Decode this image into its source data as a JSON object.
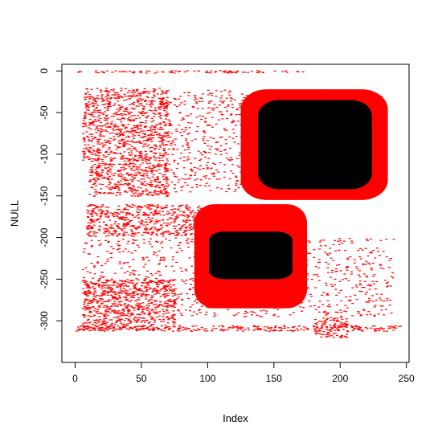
{
  "chart_data": {
    "type": "scatter",
    "title": "",
    "xlabel": "Index",
    "ylabel": "NULL",
    "xlim": [
      -10,
      252
    ],
    "ylim": [
      -350,
      8
    ],
    "grid": false,
    "x_ticks": [
      0,
      50,
      100,
      150,
      200,
      250
    ],
    "y_ticks": [
      0,
      -50,
      -100,
      -150,
      -200,
      -250,
      -300
    ],
    "x_tick_labels": [
      "0",
      "50",
      "100",
      "150",
      "200",
      "250"
    ],
    "y_tick_labels": [
      "0",
      "-50",
      "-100",
      "-150",
      "-200",
      "-250",
      "-300"
    ],
    "colors": {
      "fill": "#ff0000",
      "core": "#000000",
      "frame": "#000000"
    },
    "series": [
      {
        "color": "#ff0000",
        "regions": [
          {
            "x": [
              0,
              172
            ],
            "y": [
              -2,
              1
            ]
          },
          {
            "x": [
              5,
              70
            ],
            "y": [
              -108,
              -20
            ]
          },
          {
            "x": [
              10,
              70
            ],
            "y": [
              -150,
              -110
            ]
          },
          {
            "x": [
              70,
              230
            ],
            "y": [
              -145,
              -22
            ]
          },
          {
            "x": [
              8,
              95
            ],
            "y": [
              -198,
              -160
            ]
          },
          {
            "x": [
              5,
              240
            ],
            "y": [
              -295,
              -200
            ]
          },
          {
            "x": [
              5,
              75
            ],
            "y": [
              -310,
              -250
            ]
          },
          {
            "x": [
              180,
              205
            ],
            "y": [
              -320,
              -295
            ]
          },
          {
            "x": [
              0,
              245
            ],
            "y": [
              -312,
              -305
            ]
          }
        ],
        "blocks": [
          {
            "x": [
              125,
              236
            ],
            "y": [
              -155,
              -22
            ]
          },
          {
            "x": [
              90,
              175
            ],
            "y": [
              -285,
              -160
            ]
          }
        ]
      },
      {
        "color": "#000000",
        "blocks": [
          {
            "x": [
              138,
              224
            ],
            "y": [
              -142,
              -35
            ]
          },
          {
            "x": [
              101,
              164
            ],
            "y": [
              -250,
              -193
            ]
          }
        ]
      }
    ]
  }
}
